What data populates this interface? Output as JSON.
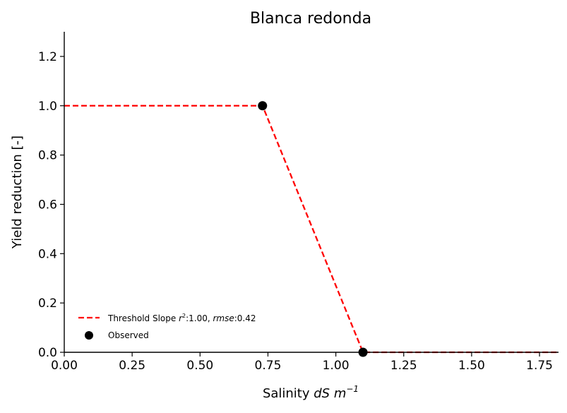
{
  "chart_data": {
    "type": "line",
    "title": "Blanca redonda",
    "xlabel_prefix": "Salinity ",
    "xlabel_math": "dS m",
    "xlabel_sup": "−1",
    "ylabel": "Yield reduction [-]",
    "xlim": [
      0.0,
      1.82
    ],
    "ylim": [
      0.0,
      1.3
    ],
    "xticks": [
      "0.00",
      "0.25",
      "0.50",
      "0.75",
      "1.00",
      "1.25",
      "1.50",
      "1.75"
    ],
    "xtick_values": [
      0,
      0.25,
      0.5,
      0.75,
      1.0,
      1.25,
      1.5,
      1.75
    ],
    "yticks": [
      "0.0",
      "0.2",
      "0.4",
      "0.6",
      "0.8",
      "1.0",
      "1.2"
    ],
    "ytick_values": [
      0,
      0.2,
      0.4,
      0.6,
      0.8,
      1.0,
      1.2
    ],
    "grid": false,
    "legend_position": "lower-left",
    "series": [
      {
        "name": "Threshold Slope r²:1.00, rmse:0.42",
        "kind": "line",
        "style": "dashed",
        "color": "#ff0000",
        "x": [
          0.0,
          0.73,
          1.1,
          1.82
        ],
        "y": [
          1.0,
          1.0,
          0.0,
          0.0
        ]
      },
      {
        "name": "Observed",
        "kind": "scatter",
        "color": "#000000",
        "x": [
          0.73,
          1.1
        ],
        "y": [
          1.0,
          0.0
        ]
      }
    ],
    "legend": {
      "line_label_prefix": "Threshold Slope ",
      "line_label_r": "r",
      "line_label_r_sup": "2",
      "line_label_mid": ":1.00, ",
      "line_label_rmse": "rmse",
      "line_label_end": ":0.42",
      "scatter_label": "Observed"
    }
  }
}
